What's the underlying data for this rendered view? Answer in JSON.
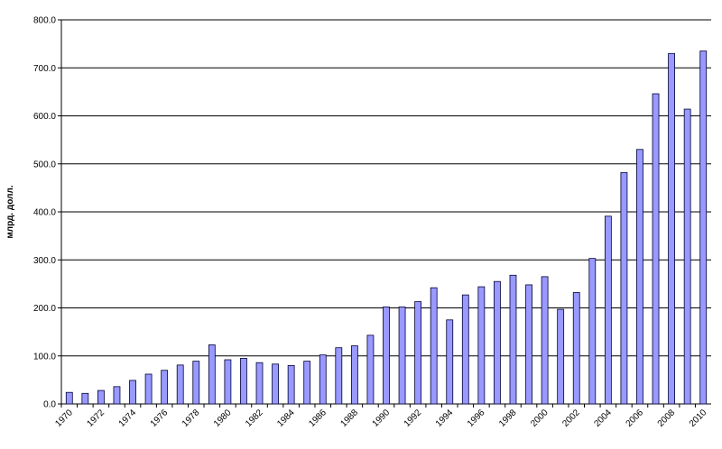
{
  "chart_data": {
    "type": "bar",
    "y_label": "млрд. долл.",
    "categories": [
      "1970",
      null,
      "1972",
      null,
      "1974",
      null,
      "1976",
      null,
      "1978",
      null,
      "1980",
      null,
      "1982",
      null,
      "1984",
      null,
      "1986",
      null,
      "1988",
      null,
      "1990",
      null,
      "1992",
      null,
      "1994",
      null,
      "1996",
      null,
      "1998",
      null,
      "2000",
      null,
      "2002",
      null,
      "2004",
      null,
      "2006",
      null,
      "2008",
      null,
      "2010"
    ],
    "values": [
      24,
      22,
      28,
      36,
      49,
      62,
      70,
      81,
      89,
      123,
      92,
      95,
      86,
      83,
      80,
      89,
      102,
      117,
      121,
      143,
      202,
      202,
      213,
      242,
      175,
      227,
      244,
      255,
      268,
      248,
      265,
      197,
      232,
      303,
      391,
      482,
      530,
      646,
      730,
      614,
      735
    ],
    "color": "#9999ff",
    "ylim": [
      0,
      800
    ],
    "yticks": [
      {
        "value": 0,
        "label": "0.0"
      },
      {
        "value": 100,
        "label": "100.0"
      },
      {
        "value": 200,
        "label": "200.0"
      },
      {
        "value": 300,
        "label": "300.0"
      },
      {
        "value": 400,
        "label": "400.0"
      },
      {
        "value": 500,
        "label": "500.0"
      },
      {
        "value": 600,
        "label": "600.0"
      },
      {
        "value": 700,
        "label": "700.0"
      },
      {
        "value": 800,
        "label": "800.0"
      }
    ],
    "grid": true
  }
}
